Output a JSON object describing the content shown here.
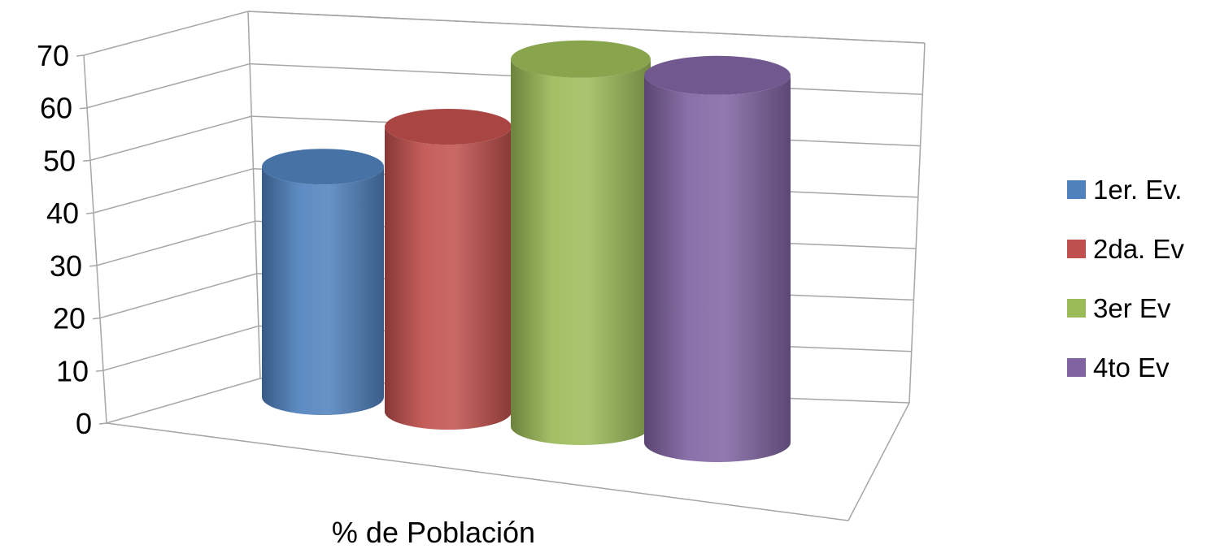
{
  "chart_data": {
    "type": "bar",
    "style": "3d-cylinder",
    "categories": [
      "% de Población"
    ],
    "series": [
      {
        "name": "1er. Ev.",
        "values": [
          43
        ],
        "color": "#4F81BD"
      },
      {
        "name": "2da. Ev",
        "values": [
          52
        ],
        "color": "#C0504D"
      },
      {
        "name": "3er Ev",
        "values": [
          68
        ],
        "color": "#9BBB59"
      },
      {
        "name": "4to Ev",
        "values": [
          68
        ],
        "color": "#8064A2"
      }
    ],
    "y_ticks": [
      "0",
      "10",
      "20",
      "30",
      "40",
      "50",
      "60",
      "70"
    ],
    "ylim": [
      0,
      70
    ],
    "grid": true,
    "legend_position": "right"
  }
}
